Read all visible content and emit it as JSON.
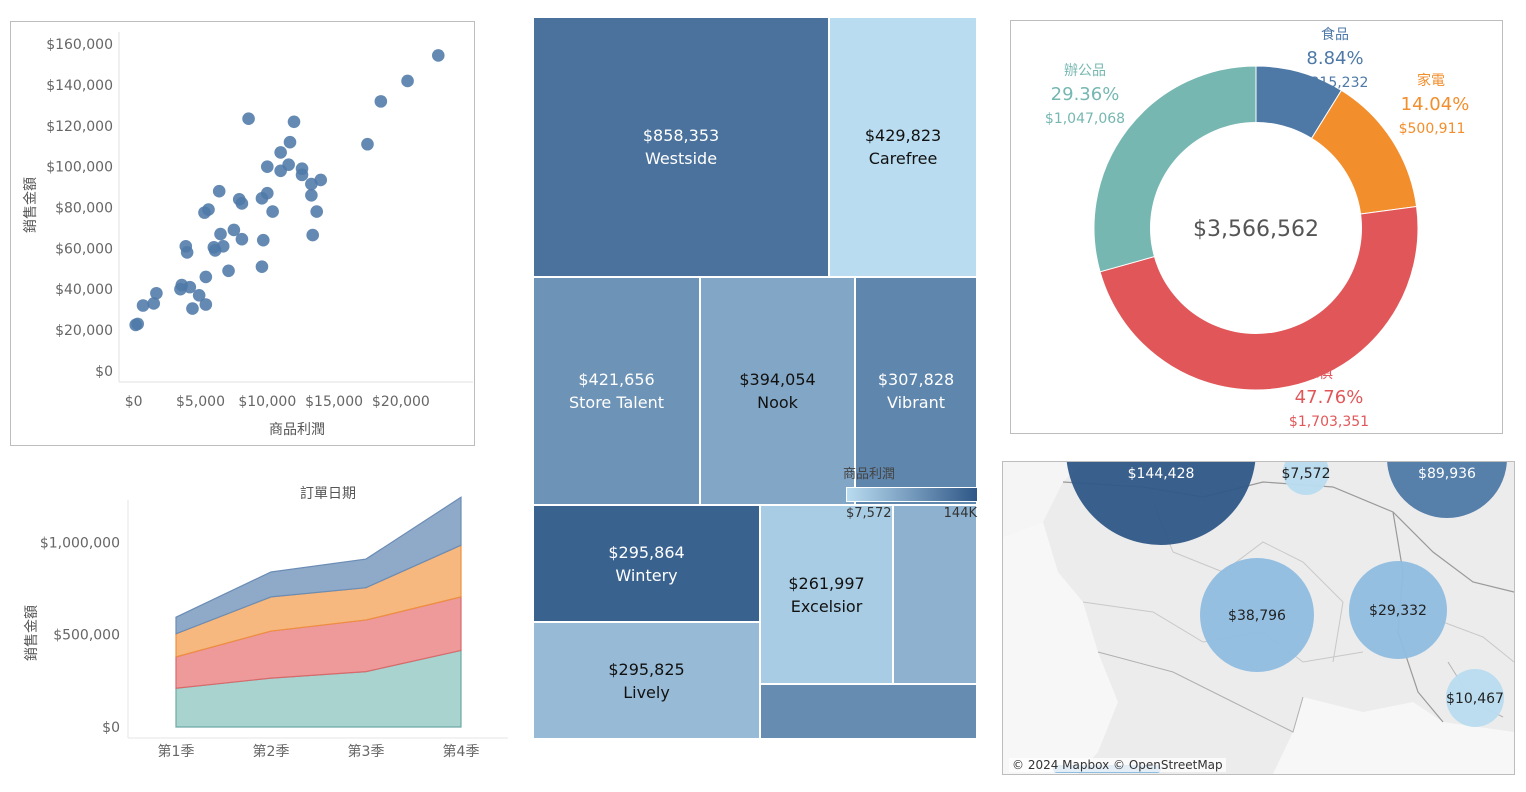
{
  "colors": {
    "points": "#4e79a7",
    "tm_dark": "#2f5787",
    "tm_light": "#b9dcf0",
    "furniture": "#e15759",
    "office": "#76b7b2",
    "food": "#4e79a7",
    "appliance": "#f28e2b"
  },
  "chart_data": [
    {
      "type": "scatter",
      "xlabel": "商品利潤",
      "ylabel": "銷售金額",
      "xlim": [
        -800,
        24500
      ],
      "ylim": [
        -4000,
        165000
      ],
      "x_ticks": [
        "$0",
        "$5,000",
        "$10,000",
        "$15,000",
        "$20,000"
      ],
      "x_tick_values": [
        0,
        5000,
        10000,
        15000,
        20000
      ],
      "y_ticks": [
        "$0",
        "$20,000",
        "$40,000",
        "$60,000",
        "$80,000",
        "$100,000",
        "$120,000",
        "$140,000",
        "$160,000"
      ],
      "y_tick_values": [
        0,
        20000,
        40000,
        60000,
        80000,
        100000,
        120000,
        140000,
        160000
      ],
      "points": [
        {
          "x": 150,
          "y": 22500
        },
        {
          "x": 300,
          "y": 23000
        },
        {
          "x": 700,
          "y": 32000
        },
        {
          "x": 1500,
          "y": 33000
        },
        {
          "x": 1700,
          "y": 38000
        },
        {
          "x": 3500,
          "y": 40000
        },
        {
          "x": 3600,
          "y": 42000
        },
        {
          "x": 4200,
          "y": 41000
        },
        {
          "x": 4400,
          "y": 30500
        },
        {
          "x": 4900,
          "y": 37000
        },
        {
          "x": 5400,
          "y": 32500
        },
        {
          "x": 5400,
          "y": 46000
        },
        {
          "x": 3900,
          "y": 61000
        },
        {
          "x": 4000,
          "y": 58000
        },
        {
          "x": 5300,
          "y": 77500
        },
        {
          "x": 5600,
          "y": 79000
        },
        {
          "x": 6000,
          "y": 60500
        },
        {
          "x": 6100,
          "y": 59000
        },
        {
          "x": 6500,
          "y": 67000
        },
        {
          "x": 6400,
          "y": 88000
        },
        {
          "x": 6700,
          "y": 61000
        },
        {
          "x": 7100,
          "y": 49000
        },
        {
          "x": 7500,
          "y": 69000
        },
        {
          "x": 7900,
          "y": 84000
        },
        {
          "x": 8100,
          "y": 82000
        },
        {
          "x": 8100,
          "y": 64500
        },
        {
          "x": 8600,
          "y": 123500
        },
        {
          "x": 9600,
          "y": 51000
        },
        {
          "x": 9700,
          "y": 64000
        },
        {
          "x": 9600,
          "y": 84500
        },
        {
          "x": 10000,
          "y": 87000
        },
        {
          "x": 10000,
          "y": 100000
        },
        {
          "x": 10400,
          "y": 78000
        },
        {
          "x": 11000,
          "y": 98000
        },
        {
          "x": 11000,
          "y": 107000
        },
        {
          "x": 11600,
          "y": 101000
        },
        {
          "x": 11700,
          "y": 112000
        },
        {
          "x": 12000,
          "y": 122000
        },
        {
          "x": 12600,
          "y": 99000
        },
        {
          "x": 12600,
          "y": 96000
        },
        {
          "x": 13300,
          "y": 91500
        },
        {
          "x": 13300,
          "y": 86000
        },
        {
          "x": 13400,
          "y": 66500
        },
        {
          "x": 13700,
          "y": 78000
        },
        {
          "x": 14000,
          "y": 93500
        },
        {
          "x": 17500,
          "y": 111000
        },
        {
          "x": 18500,
          "y": 132000
        },
        {
          "x": 20500,
          "y": 142000
        },
        {
          "x": 22800,
          "y": 154500
        }
      ]
    },
    {
      "type": "area",
      "title": "訂單日期",
      "ylabel": "銷售金額",
      "categories": [
        "第1季",
        "第2季",
        "第3季",
        "第4季"
      ],
      "y_ticks": [
        "$0",
        "$500,000",
        "$1,000,000"
      ],
      "y_tick_values": [
        0,
        500000,
        1000000
      ],
      "ylim": [
        0,
        1300000
      ],
      "stacked": true,
      "series": [
        {
          "values": [
            210000,
            265000,
            300000,
            415000
          ],
          "color": "#76b7b2"
        },
        {
          "values": [
            170000,
            255000,
            280000,
            290000
          ],
          "color": "#e15759"
        },
        {
          "values": [
            125000,
            185000,
            175000,
            280000
          ],
          "color": "#f28e2b"
        },
        {
          "values": [
            90000,
            135000,
            155000,
            260000
          ],
          "color": "#4e79a7"
        }
      ]
    },
    {
      "type": "treemap",
      "legend_title": "商品利潤",
      "legend_min": "$7,572",
      "legend_max": "144K",
      "cells": [
        {
          "value": "$858,353",
          "name": "Westside",
          "shade": 0.8,
          "text": "light"
        },
        {
          "value": "$429,823",
          "name": "Carefree",
          "shade": 0.0,
          "text": "dark"
        },
        {
          "value": "$421,656",
          "name": "Store Talent",
          "shade": 0.55,
          "text": "light"
        },
        {
          "value": "$394,054",
          "name": "Nook",
          "shade": 0.4,
          "text": "dark"
        },
        {
          "value": "$307,828",
          "name": "Vibrant",
          "shade": 0.65,
          "text": "light"
        },
        {
          "value": "$295,864",
          "name": "Wintery",
          "shade": 0.92,
          "text": "light"
        },
        {
          "value": "$295,825",
          "name": "Lively",
          "shade": 0.25,
          "text": "dark"
        },
        {
          "value": "$261,997",
          "name": "Excelsior",
          "shade": 0.12,
          "text": "dark"
        },
        {
          "value": "",
          "name": "",
          "shade": 0.32,
          "text": "dark"
        },
        {
          "value": "",
          "name": "",
          "shade": 0.6,
          "text": "dark"
        }
      ]
    },
    {
      "type": "pie",
      "donut": true,
      "center_label": "$3,566,562",
      "slices": [
        {
          "name": "食品",
          "percent": "8.84%",
          "amount": "$315,232",
          "value": 315232,
          "color": "#4e79a7"
        },
        {
          "name": "家電",
          "percent": "14.04%",
          "amount": "$500,911",
          "value": 500911,
          "color": "#f28e2b"
        },
        {
          "name": "傢俱",
          "percent": "47.76%",
          "amount": "$1,703,351",
          "value": 1703351,
          "color": "#e15759"
        },
        {
          "name": "辦公品",
          "percent": "29.36%",
          "amount": "$1,047,068",
          "value": 1047068,
          "color": "#76b7b2"
        }
      ]
    },
    {
      "type": "map",
      "bubbles": [
        {
          "label": "$144,428",
          "value": 144428,
          "shade": "dark"
        },
        {
          "label": "$7,572",
          "value": 7572,
          "shade": "light"
        },
        {
          "label": "$89,936",
          "value": 89936,
          "shade": "mid"
        },
        {
          "label": "$38,796",
          "value": 38796,
          "shade": "lightmid"
        },
        {
          "label": "$29,332",
          "value": 29332,
          "shade": "lightmid"
        },
        {
          "label": "$10,467",
          "value": 10467,
          "shade": "light"
        }
      ]
    }
  ],
  "map": {
    "attribution": "© 2024 Mapbox © OpenStreetMap"
  }
}
